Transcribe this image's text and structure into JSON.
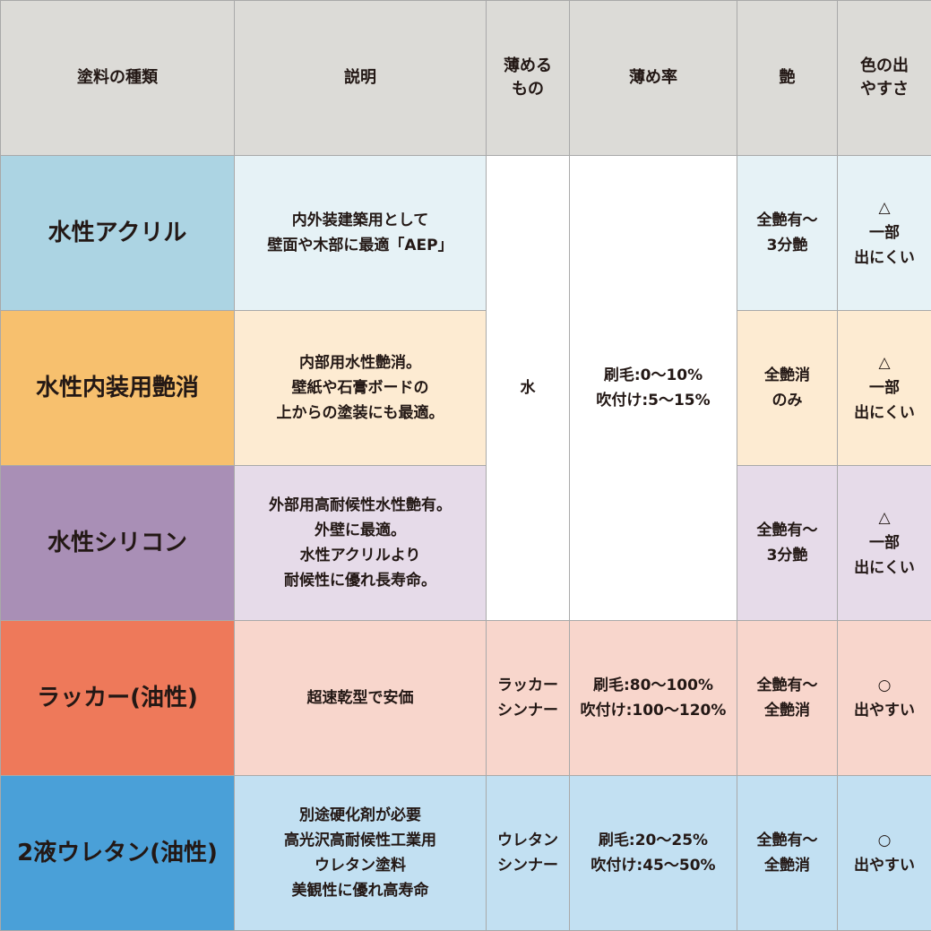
{
  "headers": [
    "塗料の種類",
    "説明",
    "薄める\nもの",
    "薄め率",
    "艶",
    "色の出\nやすさ"
  ],
  "colors": {
    "header": "#dcdbd7",
    "rows": [
      {
        "name": "#acd4e3",
        "body": "#e6f2f6"
      },
      {
        "name": "#f7c06e",
        "body": "#fdebd2"
      },
      {
        "name": "#a98fb6",
        "body": "#e6dbe9"
      },
      {
        "name": "#ee795a",
        "body": "#f8d6cc"
      },
      {
        "name": "#4aa0d8",
        "body": "#c2e0f2"
      }
    ]
  },
  "shared_water": {
    "thinner": "水",
    "ratio": "刷毛:0〜10%\n吹付け:5〜15%"
  },
  "rows": [
    {
      "name": "水性アクリル",
      "desc": "内外装建築用として\n壁面や木部に最適「AEP」",
      "gloss": "全艶有〜\n3分艶",
      "color": "△\n一部\n出にくい"
    },
    {
      "name": "水性内装用艶消",
      "desc": "内部用水性艶消。\n壁紙や石膏ボードの\n上からの塗装にも最適。",
      "gloss": "全艶消\nのみ",
      "color": "△\n一部\n出にくい"
    },
    {
      "name": "水性シリコン",
      "desc": "外部用高耐候性水性艶有。\n外壁に最適。\n水性アクリルより\n耐候性に優れ長寿命。",
      "gloss": "全艶有〜\n3分艶",
      "color": "△\n一部\n出にくい"
    },
    {
      "name": "ラッカー(油性)",
      "desc": "超速乾型で安価",
      "thinner": "ラッカー\nシンナー",
      "ratio": "刷毛:80〜100%\n吹付け:100〜120%",
      "gloss": "全艶有〜\n全艶消",
      "color": "○\n出やすい"
    },
    {
      "name": "2液ウレタン(油性)",
      "desc": "別途硬化剤が必要\n高光沢高耐候性工業用\nウレタン塗料\n美観性に優れ高寿命",
      "thinner": "ウレタン\nシンナー",
      "ratio": "刷毛:20〜25%\n吹付け:45〜50%",
      "gloss": "全艶有〜\n全艶消",
      "color": "○\n出やすい"
    }
  ]
}
